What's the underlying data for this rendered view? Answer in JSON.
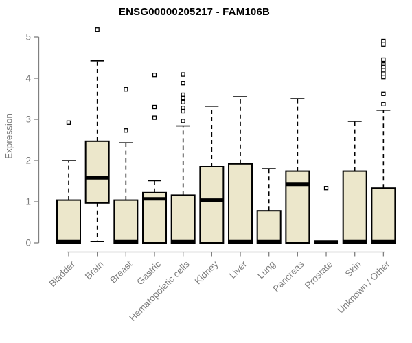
{
  "chart_data": {
    "type": "boxplot",
    "title": "ENSG00000205217 - FAM106B",
    "ylabel": "Expression",
    "xlabel": "",
    "ylim": [
      0,
      5
    ],
    "yticks": [
      0,
      1,
      2,
      3,
      4,
      5
    ],
    "grid": false,
    "categories": [
      "Bladder",
      "Brain",
      "Breast",
      "Gastric",
      "Hematopoietic cells",
      "Kidney",
      "Liver",
      "Lung",
      "Pancreas",
      "Prostate",
      "Skin",
      "Unknown / Other"
    ],
    "series": [
      {
        "name": "Bladder",
        "q1": 0,
        "median": 0.03,
        "q3": 1.04,
        "whisker_low": null,
        "whisker_high": 2.0,
        "outliers": [
          2.92
        ]
      },
      {
        "name": "Brain",
        "q1": 0.97,
        "median": 1.58,
        "q3": 2.47,
        "whisker_low": 0.03,
        "whisker_high": 4.42,
        "outliers": [
          5.18
        ]
      },
      {
        "name": "Breast",
        "q1": 0,
        "median": 0.03,
        "q3": 1.04,
        "whisker_low": null,
        "whisker_high": 2.43,
        "outliers": [
          3.73,
          2.73
        ]
      },
      {
        "name": "Gastric",
        "q1": 0,
        "median": 1.07,
        "q3": 1.22,
        "whisker_low": null,
        "whisker_high": 1.51,
        "outliers": [
          4.08,
          3.3,
          3.04
        ]
      },
      {
        "name": "Hematopoietic cells",
        "q1": 0,
        "median": 0.03,
        "q3": 1.16,
        "whisker_low": null,
        "whisker_high": 2.84,
        "outliers": [
          4.09,
          3.88,
          3.6,
          3.52,
          3.42,
          3.28,
          3.2,
          2.96
        ]
      },
      {
        "name": "Kidney",
        "q1": 0,
        "median": 1.04,
        "q3": 1.85,
        "whisker_low": null,
        "whisker_high": 3.32,
        "outliers": []
      },
      {
        "name": "Liver",
        "q1": 0,
        "median": 0.03,
        "q3": 1.92,
        "whisker_low": null,
        "whisker_high": 3.55,
        "outliers": []
      },
      {
        "name": "Lung",
        "q1": 0,
        "median": 0.03,
        "q3": 0.78,
        "whisker_low": null,
        "whisker_high": 1.8,
        "outliers": []
      },
      {
        "name": "Pancreas",
        "q1": 0,
        "median": 1.42,
        "q3": 1.74,
        "whisker_low": null,
        "whisker_high": 3.5,
        "outliers": []
      },
      {
        "name": "Prostate",
        "q1": 0.02,
        "median": 0.02,
        "q3": 0.02,
        "whisker_low": null,
        "whisker_high": null,
        "outliers": [
          1.33
        ]
      },
      {
        "name": "Skin",
        "q1": 0,
        "median": 0.03,
        "q3": 1.74,
        "whisker_low": null,
        "whisker_high": 2.95,
        "outliers": []
      },
      {
        "name": "Unknown / Other",
        "q1": 0,
        "median": 0.03,
        "q3": 1.33,
        "whisker_low": null,
        "whisker_high": 3.22,
        "outliers": [
          4.9,
          4.82,
          4.45,
          4.33,
          4.27,
          4.19,
          4.11,
          4.03,
          3.62,
          3.37
        ]
      }
    ],
    "style": {
      "box_fill": "#ece7cb",
      "box_border": "#000000",
      "median_color": "#000000",
      "whisker_color": "#000000",
      "outlier_fill": "#ffffff",
      "outlier_border": "#000000",
      "axis_color": "#808080",
      "tick_label_color": "#7d7d7d",
      "title_color": "#000000",
      "background": "#ffffff"
    }
  }
}
